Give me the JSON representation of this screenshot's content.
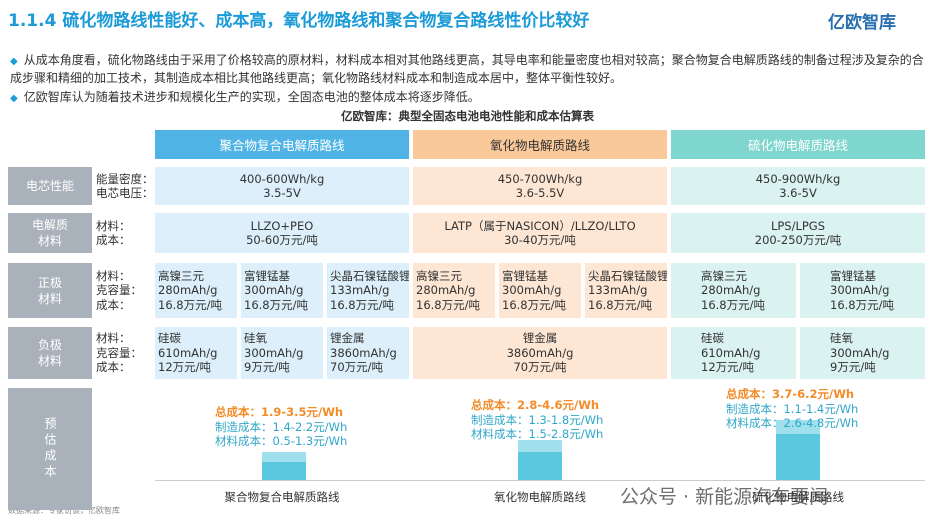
{
  "header": {
    "title": "1.1.4 硫化物路线性能好、成本高，氧化物路线和聚合物复合路线性价比较好",
    "logo": "亿欧智库"
  },
  "bullets": [
    "从成本角度看，硫化物路线由于采用了价格较高的原材料，材料成本相对其他路线更高，其导电率和能量密度也相对较高；聚合物复合电解质路线的制备过程涉及复杂的合成步骤和精细的加工技术，其制造成本相比其他路线更高；氧化物路线材料成本和制造成本居中，整体平衡性较好。",
    "亿欧智库认为随着技术进步和规模化生产的实现，全固态电池的整体成本将逐步降低。"
  ],
  "table": {
    "title": "亿欧智库：典型全固态电池电池性能和成本估算表",
    "columns": [
      "聚合物复合电解质路线",
      "氧化物电解质路线",
      "硫化物电解质路线"
    ],
    "rows": [
      {
        "label": [
          "电芯性能"
        ],
        "fields": [
          "能量密度：",
          "电芯电压："
        ],
        "cells": [
          [
            [
              "400-600Wh/kg",
              "3.5-5V"
            ]
          ],
          [
            [
              "450-700Wh/kg",
              "3.6-5.5V"
            ]
          ],
          [
            [
              "450-900Wh/kg",
              "3.6-5V"
            ]
          ]
        ]
      },
      {
        "label": [
          "电解质",
          "材料"
        ],
        "fields": [
          "材料：",
          "成本："
        ],
        "cells": [
          [
            [
              "LLZO+PEO",
              "50-60万元/吨"
            ]
          ],
          [
            [
              "LATP（属于NASICON）/LLZO/LLTO",
              "30-40万元/吨"
            ]
          ],
          [
            [
              "LPS/LPGS",
              "200-250万元/吨"
            ]
          ]
        ]
      },
      {
        "label": [
          "正极",
          "材料"
        ],
        "fields": [
          "材料：",
          "克容量：",
          "成本："
        ],
        "cells": [
          [
            [
              "高镍三元",
              "280mAh/g",
              "16.8万元/吨"
            ],
            [
              "富锂锰基",
              "300mAh/g",
              "16.8万元/吨"
            ],
            [
              "尖晶石镍锰酸锂",
              "133mAh/g",
              "16.8万元/吨"
            ]
          ],
          [
            [
              "高镍三元",
              "280mAh/g",
              "16.8万元/吨"
            ],
            [
              "富锂锰基",
              "300mAh/g",
              "16.8万元/吨"
            ],
            [
              "尖晶石镍锰酸锂",
              "133mAh/g",
              "16.8万元/吨"
            ]
          ],
          [
            [
              "高镍三元",
              "280mAh/g",
              "16.8万元/吨"
            ],
            [
              "富锂锰基",
              "300mAh/g",
              "16.8万元/吨"
            ]
          ]
        ]
      },
      {
        "label": [
          "负极",
          "材料"
        ],
        "fields": [
          "材料：",
          "克容量：",
          "成本："
        ],
        "cells": [
          [
            [
              "硅碳",
              "610mAh/g",
              "12万元/吨"
            ],
            [
              "硅氧",
              "300mAh/g",
              "9万元/吨"
            ],
            [
              "锂金属",
              "3860mAh/g",
              "70万元/吨"
            ]
          ],
          [
            [
              "锂金属",
              "3860mAh/g",
              "70万元/吨"
            ]
          ],
          [
            [
              "硅碳",
              "610mAh/g",
              "12万元/吨"
            ],
            [
              "硅氧",
              "300mAh/g",
              "9万元/吨"
            ]
          ]
        ]
      }
    ],
    "cost": {
      "label": "预估成本",
      "items": [
        [
          "总成本：1.9-3.5元/Wh",
          "制造成本：1.4-2.2元/Wh",
          "材料成本：0.5-1.3元/Wh"
        ],
        [
          "总成本：2.8-4.6元/Wh",
          "制造成本：1.3-1.8元/Wh",
          "材料成本：1.5-2.8元/Wh"
        ],
        [
          "总成本：3.7-6.2元/Wh",
          "制造成本：1.1-1.4元/Wh",
          "材料成本：2.6-4.8元/Wh"
        ]
      ]
    }
  },
  "footer": {
    "source": "数据来源：专家访谈，亿欧智库",
    "watermark": "公众号 · 新能源汽车要闻"
  }
}
